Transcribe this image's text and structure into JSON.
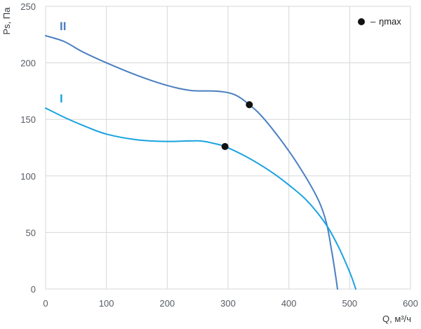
{
  "chart_data": {
    "type": "line",
    "xlabel": "Q, м³/ч",
    "ylabel": "Ps, Па",
    "xlim": [
      0,
      600
    ],
    "ylim": [
      0,
      250
    ],
    "x_ticks": [
      0,
      100,
      200,
      300,
      400,
      500,
      600
    ],
    "y_ticks": [
      0,
      50,
      100,
      150,
      200,
      250
    ],
    "grid": true,
    "legend": {
      "position": "top-right",
      "marker_label": "ŋmax"
    },
    "series": [
      {
        "name": "II",
        "color": "#4a7fc1",
        "points": [
          [
            0,
            224
          ],
          [
            30,
            219
          ],
          [
            60,
            210
          ],
          [
            100,
            200
          ],
          [
            150,
            189
          ],
          [
            200,
            180
          ],
          [
            240,
            175.5
          ],
          [
            280,
            175
          ],
          [
            310,
            172
          ],
          [
            335,
            163
          ],
          [
            360,
            150
          ],
          [
            400,
            122
          ],
          [
            430,
            97
          ],
          [
            450,
            77
          ],
          [
            462,
            58
          ],
          [
            470,
            35
          ],
          [
            476,
            15
          ],
          [
            480,
            0
          ]
        ],
        "eta_max": [
          335,
          163
        ]
      },
      {
        "name": "I",
        "color": "#1aa3e0",
        "points": [
          [
            0,
            160
          ],
          [
            30,
            152
          ],
          [
            60,
            145
          ],
          [
            100,
            137
          ],
          [
            150,
            132
          ],
          [
            200,
            130.5
          ],
          [
            250,
            131
          ],
          [
            275,
            129
          ],
          [
            295,
            126
          ],
          [
            330,
            117
          ],
          [
            370,
            104
          ],
          [
            400,
            92
          ],
          [
            430,
            78
          ],
          [
            460,
            58
          ],
          [
            480,
            39
          ],
          [
            500,
            15
          ],
          [
            510,
            0
          ]
        ],
        "eta_max": [
          295,
          126
        ]
      }
    ]
  }
}
